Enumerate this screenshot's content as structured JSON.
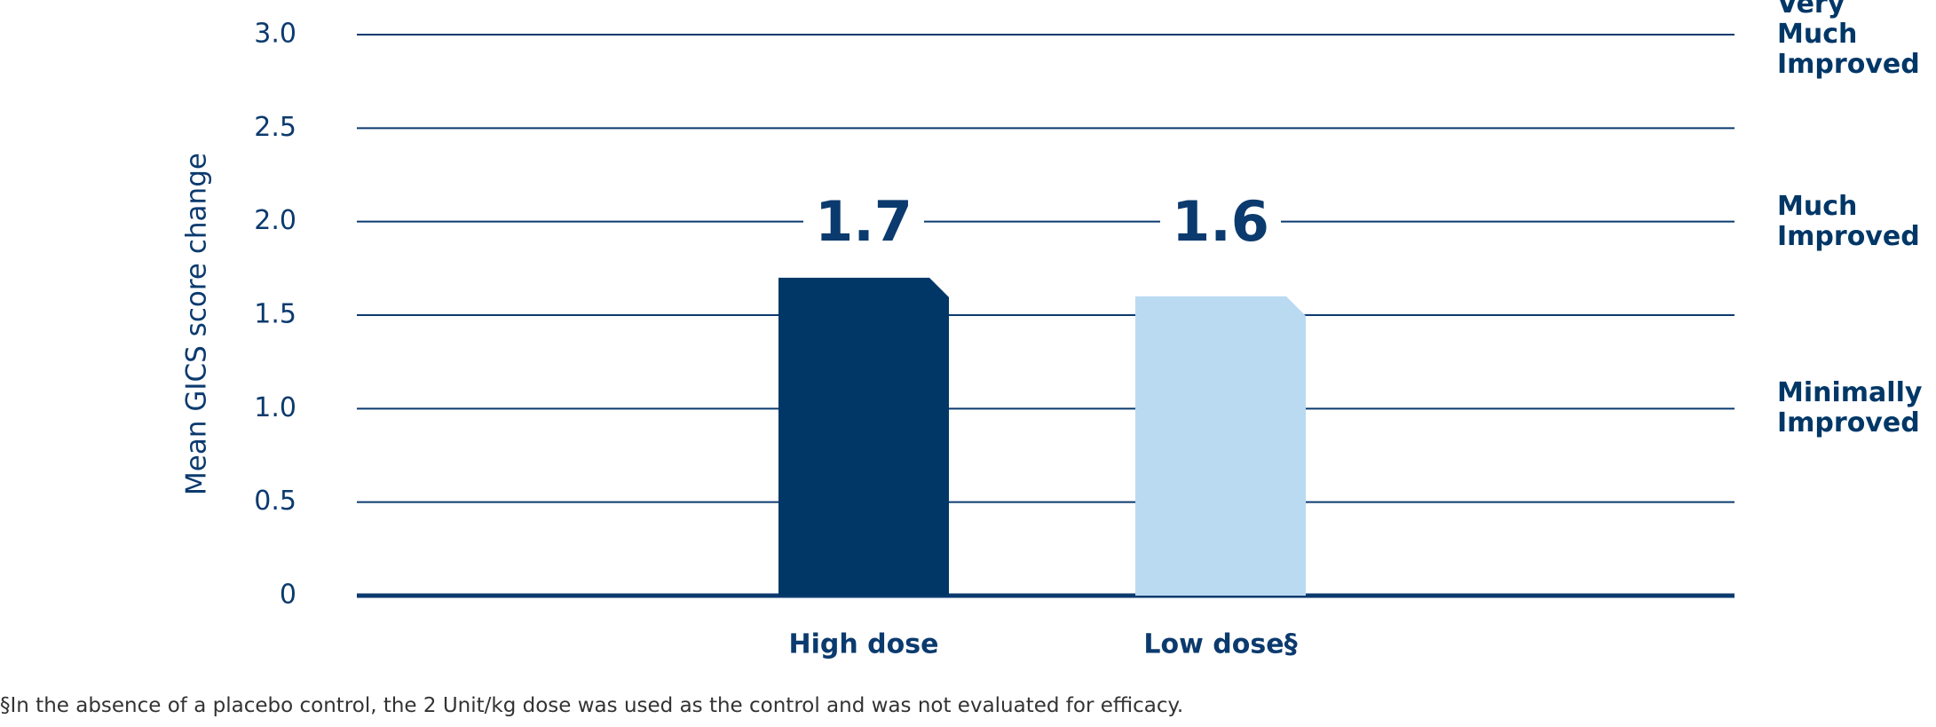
{
  "chart_data": {
    "type": "bar",
    "y_axis_label": "Mean GICS score change",
    "categories": [
      "High dose",
      "Low dose§"
    ],
    "values": [
      1.7,
      1.6
    ],
    "colors": [
      "#003767",
      "#badaf2"
    ],
    "ylim": [
      0,
      3
    ],
    "yticks": [
      0,
      0.5,
      {
        "value": 1,
        "label": "1.0"
      },
      1.5,
      {
        "value": 2,
        "label": "2.0"
      },
      2.5,
      {
        "value": 3,
        "label": "3.0"
      }
    ],
    "grid": true,
    "right_labels": [
      {
        "value": 3,
        "label": "Very Much Improved"
      },
      {
        "value": 2,
        "label": "Much Improved"
      },
      {
        "value": 1,
        "label": "Minimally Improved"
      }
    ],
    "footnote": "§In the absence of a placebo control, the 2 Unit/kg dose was used as the control and was not evaluated for efficacy."
  }
}
